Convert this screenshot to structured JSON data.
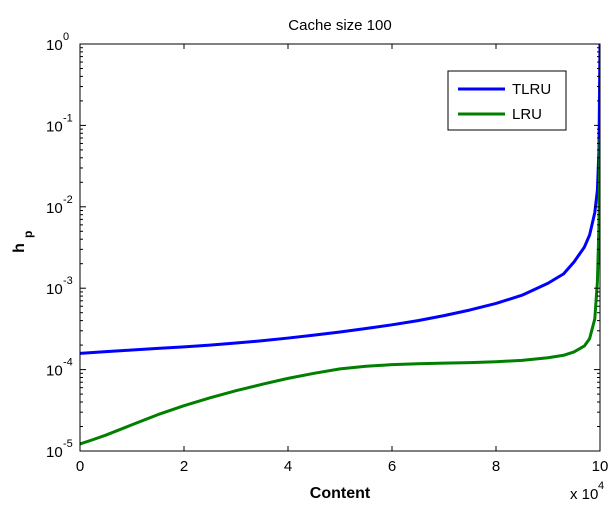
{
  "chart_data": {
    "type": "line",
    "title": "Cache size 100",
    "xlabel": "Content",
    "ylabel_main": "h",
    "ylabel_sub": "p",
    "x_multiplier_label": {
      "base": "x 10",
      "exp": "4"
    },
    "xlim": [
      0,
      10
    ],
    "ylim": [
      1e-05,
      1
    ],
    "yscale": "log",
    "grid": false,
    "legend_position": "top-right",
    "x_ticks": [
      {
        "value": 0,
        "label": "0"
      },
      {
        "value": 2,
        "label": "2"
      },
      {
        "value": 4,
        "label": "4"
      },
      {
        "value": 6,
        "label": "6"
      },
      {
        "value": 8,
        "label": "8"
      },
      {
        "value": 10,
        "label": "10"
      }
    ],
    "y_ticks": [
      {
        "value": 1e-05,
        "base": "10",
        "exp": "-5"
      },
      {
        "value": 0.0001,
        "base": "10",
        "exp": "-4"
      },
      {
        "value": 0.001,
        "base": "10",
        "exp": "-3"
      },
      {
        "value": 0.01,
        "base": "10",
        "exp": "-2"
      },
      {
        "value": 0.1,
        "base": "10",
        "exp": "-1"
      },
      {
        "value": 1,
        "base": "10",
        "exp": "0"
      }
    ],
    "series": [
      {
        "name": "TLRU",
        "color": "#0000ff",
        "points": [
          [
            0,
            0.000158
          ],
          [
            0.5,
            0.000166
          ],
          [
            1,
            0.000174
          ],
          [
            1.5,
            0.000182
          ],
          [
            2,
            0.00019
          ],
          [
            2.5,
            0.0002
          ],
          [
            3,
            0.000212
          ],
          [
            3.5,
            0.000226
          ],
          [
            4,
            0.000244
          ],
          [
            4.5,
            0.000265
          ],
          [
            5,
            0.00029
          ],
          [
            5.5,
            0.00032
          ],
          [
            6,
            0.000355
          ],
          [
            6.5,
            0.0004
          ],
          [
            7,
            0.00046
          ],
          [
            7.5,
            0.00054
          ],
          [
            8,
            0.00065
          ],
          [
            8.5,
            0.00082
          ],
          [
            9,
            0.00115
          ],
          [
            9.3,
            0.0015
          ],
          [
            9.5,
            0.0021
          ],
          [
            9.7,
            0.0032
          ],
          [
            9.8,
            0.0045
          ],
          [
            9.9,
            0.0085
          ],
          [
            9.95,
            0.016
          ],
          [
            9.98,
            0.05
          ],
          [
            10,
            1.0
          ]
        ]
      },
      {
        "name": "LRU",
        "color": "#007f00",
        "points": [
          [
            0,
            1.22e-05
          ],
          [
            0.25,
            1.38e-05
          ],
          [
            0.5,
            1.57e-05
          ],
          [
            1,
            2.1e-05
          ],
          [
            1.5,
            2.8e-05
          ],
          [
            2,
            3.6e-05
          ],
          [
            2.5,
            4.5e-05
          ],
          [
            3,
            5.5e-05
          ],
          [
            3.5,
            6.6e-05
          ],
          [
            4,
            7.8e-05
          ],
          [
            4.5,
            9e-05
          ],
          [
            5,
            0.000102
          ],
          [
            5.5,
            0.00011
          ],
          [
            6,
            0.000115
          ],
          [
            6.5,
            0.000118
          ],
          [
            7,
            0.00012
          ],
          [
            7.5,
            0.000122
          ],
          [
            8,
            0.000125
          ],
          [
            8.5,
            0.00013
          ],
          [
            9,
            0.00014
          ],
          [
            9.3,
            0.00015
          ],
          [
            9.5,
            0.000165
          ],
          [
            9.7,
            0.000195
          ],
          [
            9.8,
            0.00024
          ],
          [
            9.9,
            0.00042
          ],
          [
            9.95,
            0.0012
          ],
          [
            9.98,
            0.006
          ],
          [
            10,
            0.07
          ]
        ]
      }
    ]
  }
}
